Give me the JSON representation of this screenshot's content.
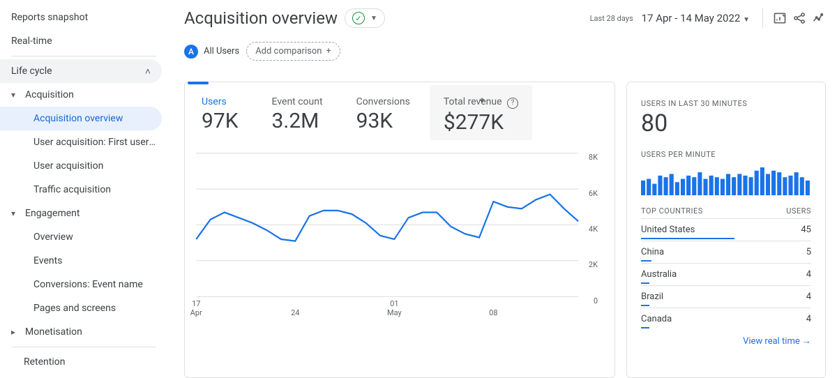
{
  "sidebar": {
    "reports_snapshot": "Reports snapshot",
    "realtime": "Real-time",
    "lifecycle": "Life cycle",
    "acquisition": "Acquisition",
    "acq_overview": "Acquisition overview",
    "user_acq_first": "User acquisition: First user …",
    "user_acq": "User acquisition",
    "traffic_acq": "Traffic acquisition",
    "engagement": "Engagement",
    "eng_overview": "Overview",
    "events": "Events",
    "conversions": "Conversions: Event name",
    "pages": "Pages and screens",
    "monetisation": "Monetisation",
    "retention": "Retention"
  },
  "header": {
    "title": "Acquisition overview",
    "date_prefix": "Last 28 days",
    "date_range": "17 Apr - 14 May 2022",
    "all_users": "All Users",
    "badge_letter": "A",
    "add_comparison": "Add comparison"
  },
  "metrics": {
    "users_label": "Users",
    "users_value": "97K",
    "event_label": "Event count",
    "event_value": "3.2M",
    "conv_label": "Conversions",
    "conv_value": "93K",
    "rev_label": "Total revenue",
    "rev_value": "$277K"
  },
  "chart": {
    "type": "line",
    "color": "#1a73e8",
    "grid_color": "#e0e0e0",
    "line_width": 2,
    "ylim": [
      0,
      8000
    ],
    "yticks": [
      {
        "label": "8K",
        "v": 8000
      },
      {
        "label": "6K",
        "v": 6000
      },
      {
        "label": "4K",
        "v": 4000
      },
      {
        "label": "2K",
        "v": 2000
      },
      {
        "label": "0",
        "v": 0
      }
    ],
    "xticks": [
      {
        "day": "17",
        "mon": "Apr",
        "x": 0
      },
      {
        "day": "24",
        "mon": "",
        "x": 7
      },
      {
        "day": "01",
        "mon": "May",
        "x": 14
      },
      {
        "day": "08",
        "mon": "",
        "x": 21
      }
    ],
    "x_domain": [
      0,
      27
    ],
    "values": [
      3200,
      4300,
      4700,
      4400,
      4100,
      3700,
      3200,
      3100,
      4500,
      4800,
      4800,
      4600,
      4100,
      3400,
      3200,
      4400,
      4700,
      4700,
      3900,
      3500,
      3300,
      5300,
      5000,
      4900,
      5400,
      5700,
      4900,
      4200
    ]
  },
  "realtime_card": {
    "users_label": "USERS IN LAST 30 MINUTES",
    "users_value": "80",
    "upm_label": "USERS PER MINUTE",
    "spark_color": "#1a73e8",
    "spark_values": [
      18,
      20,
      14,
      24,
      22,
      26,
      16,
      20,
      24,
      22,
      28,
      20,
      24,
      22,
      20,
      26,
      22,
      26,
      24,
      22,
      30,
      34,
      26,
      30,
      28,
      22,
      24,
      28,
      22,
      18
    ],
    "top_countries_label": "TOP COUNTRIES",
    "users_col": "USERS",
    "countries": [
      {
        "name": "United States",
        "users": 45,
        "bar_frac": 1.0
      },
      {
        "name": "China",
        "users": 5,
        "bar_frac": 0.11
      },
      {
        "name": "Australia",
        "users": 4,
        "bar_frac": 0.09
      },
      {
        "name": "Brazil",
        "users": 4,
        "bar_frac": 0.09
      },
      {
        "name": "Canada",
        "users": 4,
        "bar_frac": 0.09
      }
    ],
    "view_realtime": "View real time"
  }
}
